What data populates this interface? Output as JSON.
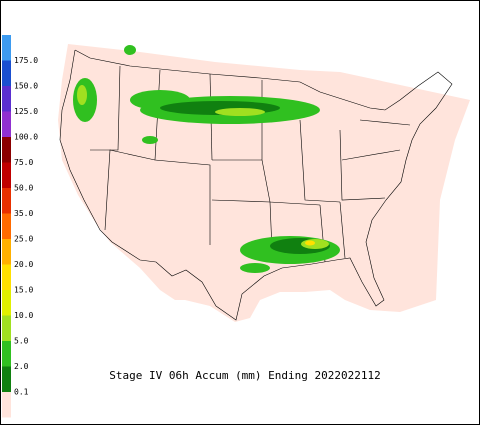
{
  "title": "Stage IV 06h Accum (mm) Ending 2022022112",
  "colorbar": {
    "labels": [
      "175.0",
      "150.0",
      "125.0",
      "100.0",
      "75.0",
      "50.0",
      "35.0",
      "25.0",
      "20.0",
      "15.0",
      "10.0",
      "5.0",
      "2.0",
      "0.1"
    ],
    "colors": [
      "#3d9bf0",
      "#1a4fd0",
      "#5a2fd0",
      "#9030d0",
      "#8b0000",
      "#c00000",
      "#e83000",
      "#ff6a00",
      "#ffb000",
      "#ffe000",
      "#e0f000",
      "#a0e020",
      "#30c020",
      "#108010",
      "#ffe4dc"
    ]
  }
}
